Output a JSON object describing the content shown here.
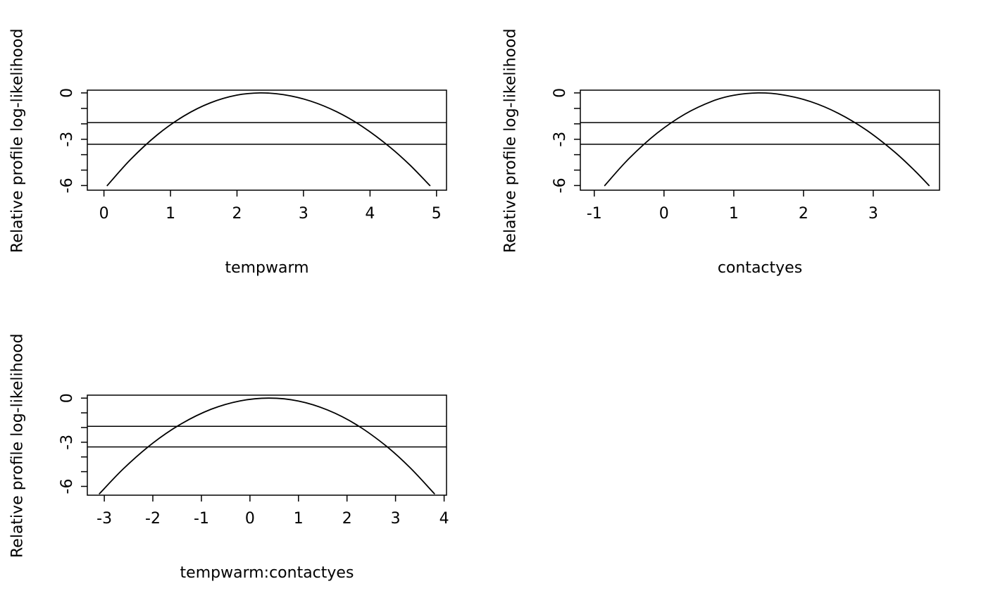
{
  "page": {
    "background": "#ffffff",
    "foreground": "#000000"
  },
  "chart_data": [
    {
      "type": "line",
      "title": "",
      "xlabel": "tempwarm",
      "ylabel": "Relative profile log-likelihood",
      "xlim": [
        -0.25,
        5.15
      ],
      "ylim": [
        -6.3,
        0.18
      ],
      "xticks": [
        0,
        1,
        2,
        3,
        4,
        5
      ],
      "yticks": [
        0,
        -1,
        -2,
        -3,
        -4,
        -5,
        -6
      ],
      "yticks_labeled": [
        0,
        -3,
        -6
      ],
      "ref_lines": [
        -1.92,
        -3.32
      ],
      "grid": false,
      "legend": null,
      "series": [
        {
          "name": "profile",
          "x": [
            0.05,
            0.4,
            0.8,
            1.2,
            1.6,
            2.0,
            2.35,
            2.7,
            3.1,
            3.5,
            3.9,
            4.3,
            4.6,
            4.9
          ],
          "y": [
            -6.0,
            -4.31,
            -2.72,
            -1.5,
            -0.64,
            -0.14,
            0.0,
            -0.11,
            -0.52,
            -1.22,
            -2.22,
            -3.51,
            -4.67,
            -6.0
          ]
        }
      ]
    },
    {
      "type": "line",
      "title": "",
      "xlabel": "contactyes",
      "ylabel": "Relative profile log-likelihood",
      "xlim": [
        -1.2,
        3.95
      ],
      "ylim": [
        -6.3,
        0.18
      ],
      "xticks": [
        -1,
        0,
        1,
        2,
        3
      ],
      "yticks": [
        0,
        -1,
        -2,
        -3,
        -4,
        -5,
        -6
      ],
      "yticks_labeled": [
        0,
        -3,
        -6
      ],
      "ref_lines": [
        -1.92,
        -3.32
      ],
      "grid": false,
      "legend": null,
      "series": [
        {
          "name": "profile",
          "x": [
            -0.85,
            -0.5,
            -0.1,
            0.3,
            0.7,
            1.0,
            1.35,
            1.7,
            2.1,
            2.5,
            2.9,
            3.3,
            3.6,
            3.8
          ],
          "y": [
            -6.0,
            -4.24,
            -2.61,
            -1.37,
            -0.52,
            -0.15,
            0.0,
            -0.12,
            -0.56,
            -1.32,
            -2.4,
            -3.8,
            -5.06,
            -6.0
          ]
        }
      ]
    },
    {
      "type": "line",
      "title": "",
      "xlabel": "tempwarm:contactyes",
      "ylabel": "Relative profile log-likelihood",
      "xlim": [
        -3.35,
        4.05
      ],
      "ylim": [
        -6.6,
        0.2
      ],
      "xticks": [
        -3,
        -2,
        -1,
        0,
        1,
        2,
        3,
        4
      ],
      "yticks": [
        0,
        -1,
        -2,
        -3,
        -4,
        -5,
        -6
      ],
      "yticks_labeled": [
        0,
        -3,
        -6
      ],
      "ref_lines": [
        -1.92,
        -3.32
      ],
      "grid": false,
      "legend": null,
      "series": [
        {
          "name": "profile",
          "x": [
            -3.1,
            -2.6,
            -2.0,
            -1.4,
            -0.8,
            -0.2,
            0.4,
            1.0,
            1.6,
            2.2,
            2.8,
            3.3,
            3.8
          ],
          "y": [
            -6.5,
            -4.78,
            -3.06,
            -1.72,
            -0.76,
            -0.19,
            0.0,
            -0.2,
            -0.81,
            -1.82,
            -3.24,
            -4.73,
            -6.5
          ]
        }
      ]
    }
  ]
}
